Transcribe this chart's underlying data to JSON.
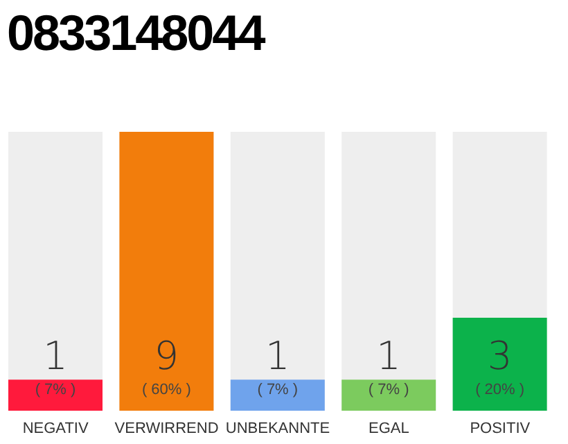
{
  "chart_data": {
    "type": "bar",
    "title": "0833148044",
    "categories": [
      "NEGATIV",
      "VERWIRREND",
      "UNBEKANNTE",
      "EGAL",
      "POSITIV"
    ],
    "values": [
      1,
      9,
      1,
      1,
      3
    ],
    "colors": [
      "#ff1a3c",
      "#f27d0c",
      "#6fa3ec",
      "#7ccb5e",
      "#0cb24b"
    ],
    "data_labels": true,
    "annotations": [
      "( 7% )",
      "( 60% )",
      "( 7% )",
      "( 7% )",
      "( 20% )"
    ],
    "grid": false,
    "legend": false
  }
}
